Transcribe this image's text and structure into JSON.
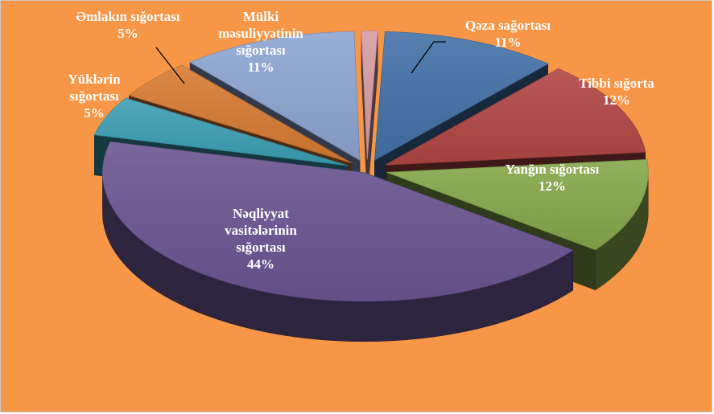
{
  "chart_data": {
    "type": "pie",
    "style": "3d-exploded",
    "background": "#f79646",
    "slices": [
      {
        "label_lines": [
          "Qəza  sağortası"
        ],
        "value_label": "11%",
        "value": 11,
        "color": "#4472a8",
        "label_color": "#ffffff"
      },
      {
        "label_lines": [
          "Tibbi sığorta"
        ],
        "value_label": "12%",
        "value": 12,
        "color": "#b24745",
        "label_color": "#ffffff"
      },
      {
        "label_lines": [
          "Yanğın sığortası"
        ],
        "value_label": "12%",
        "value": 12,
        "color": "#86a84b",
        "label_color": "#ffffff"
      },
      {
        "label_lines": [
          "Nəqliyyat",
          "vasitələrinin",
          "sığortası"
        ],
        "value_label": "44%",
        "value": 44,
        "color": "#6c5693",
        "label_color": "#ffffff"
      },
      {
        "label_lines": [
          "Yüklərin",
          "sığortası"
        ],
        "value_label": "5%",
        "value": 5,
        "color": "#3d9fb5",
        "label_color": "#ffffff"
      },
      {
        "label_lines": [
          "Əmlakın sığortası"
        ],
        "value_label": "5%",
        "value": 5,
        "color": "#d97b33",
        "label_color": "#ffffff"
      },
      {
        "label_lines": [
          "Mülki",
          "məsuliyyətinin",
          "sığortası"
        ],
        "value_label": "11%",
        "value": 11,
        "color": "#8ea6d2",
        "label_color": "#ffffff"
      },
      {
        "label_lines": [],
        "value_label": "",
        "value": 1,
        "color": "#d79ca4",
        "label_color": "#ffffff"
      }
    ]
  }
}
